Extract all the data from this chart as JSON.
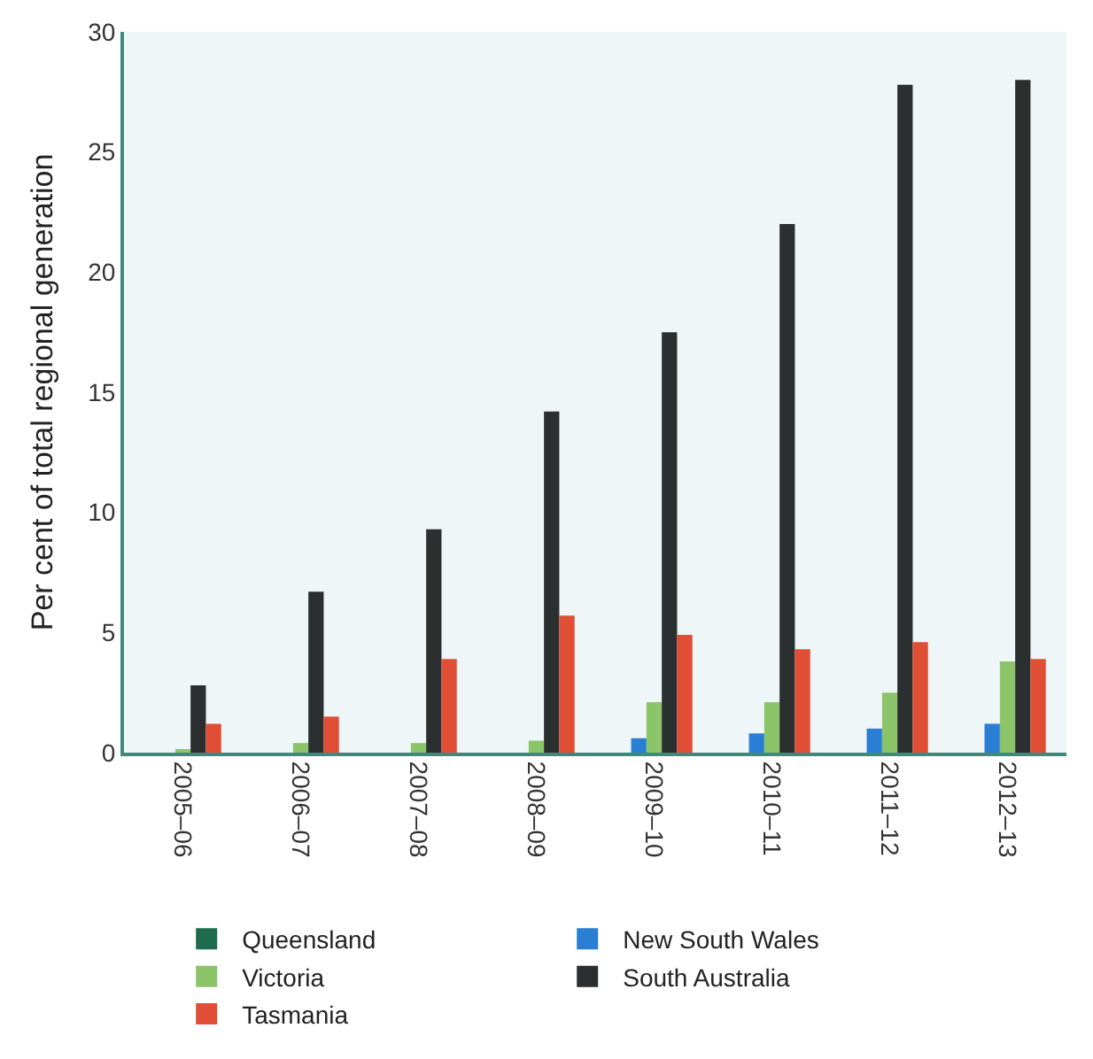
{
  "chart_data": {
    "type": "bar",
    "ylabel": "Per cent of total regional generation",
    "categories": [
      "2005–06",
      "2006–07",
      "2007–08",
      "2008–09",
      "2009–10",
      "2010–11",
      "2011–12",
      "2012–13"
    ],
    "series": [
      {
        "name": "Queensland",
        "color": "#1f6b4f",
        "values": [
          0,
          0,
          0,
          0,
          0,
          0,
          0,
          0
        ]
      },
      {
        "name": "New South Wales",
        "color": "#2a7fd4",
        "values": [
          0,
          0,
          0,
          0,
          0.6,
          0.8,
          1.0,
          1.2
        ]
      },
      {
        "name": "Victoria",
        "color": "#8cc46a",
        "values": [
          0.1,
          0.4,
          0.4,
          0.5,
          2.1,
          2.1,
          2.5,
          3.8
        ]
      },
      {
        "name": "South Australia",
        "color": "#2b2f2f",
        "values": [
          2.8,
          6.7,
          9.3,
          14.2,
          17.5,
          22.0,
          27.8,
          28.0
        ]
      },
      {
        "name": "Tasmania",
        "color": "#e04e35",
        "values": [
          1.2,
          1.5,
          3.9,
          5.7,
          4.9,
          4.3,
          4.6,
          3.9
        ]
      }
    ],
    "ylim": [
      0,
      30
    ],
    "yticks": [
      0,
      5,
      10,
      15,
      20,
      25,
      30
    ],
    "grid": false,
    "legend": "bottom"
  }
}
